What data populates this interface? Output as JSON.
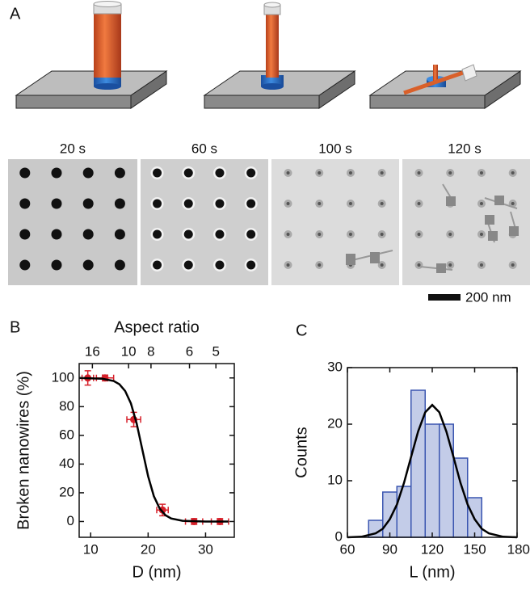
{
  "panel_labels": [
    "A",
    "B",
    "C"
  ],
  "time_labels": [
    "20 s",
    "60 s",
    "100 s",
    "120 s"
  ],
  "scale_bar": "200 nm",
  "chart_data": [
    {
      "type": "scatter",
      "x2label": "Aspect ratio",
      "xlabel": "D (nm)",
      "ylabel": "Broken nanowires (%)",
      "xlim": [
        8,
        35
      ],
      "ylim": [
        -11,
        110
      ],
      "xticks": [
        10,
        20,
        30
      ],
      "yticks": [
        0,
        20,
        40,
        60,
        80,
        100
      ],
      "x2ticks": [
        {
          "value": 10.3,
          "label": "16"
        },
        {
          "value": 16.6,
          "label": "10"
        },
        {
          "value": 20.5,
          "label": "8"
        },
        {
          "value": 27.2,
          "label": "6"
        },
        {
          "value": 31.8,
          "label": "5"
        }
      ],
      "series": [
        {
          "color": "#d6202a",
          "x": [
            9.5,
            12.5,
            17.5,
            22.5,
            28,
            32.5
          ],
          "values": [
            100,
            100,
            71,
            8,
            0,
            0
          ],
          "x_err": [
            1,
            1.5,
            1.2,
            1,
            1.5,
            1.5
          ],
          "y_err": [
            5,
            2,
            5,
            4,
            2,
            2
          ]
        },
        {
          "color": "#000000",
          "x": [
            8,
            12,
            14,
            15,
            16,
            17,
            18,
            19,
            20,
            21,
            22,
            23,
            24,
            26,
            30,
            34
          ],
          "values": [
            100,
            99.5,
            97.9,
            95.6,
            90.9,
            82.3,
            68.4,
            50,
            31.6,
            17.7,
            9.1,
            4.4,
            2.1,
            0.5,
            0,
            0
          ]
        }
      ]
    },
    {
      "type": "histogram",
      "xlabel": "L (nm)",
      "ylabel": "Counts",
      "xlim": [
        60,
        180
      ],
      "ylim": [
        0,
        30
      ],
      "xticks": [
        60,
        90,
        120,
        150,
        180
      ],
      "yticks": [
        0,
        10,
        20,
        30
      ],
      "bins": [
        75,
        85,
        95,
        105,
        115,
        125,
        135,
        145,
        155
      ],
      "counts": [
        3,
        8,
        9,
        26,
        20,
        20,
        14,
        7
      ],
      "color": "#c3cce8",
      "edge_color": "#3a55b0",
      "series": [
        {
          "color": "#000000",
          "x": [
            60,
            70,
            80,
            85,
            90,
            95,
            100,
            105,
            110,
            115,
            120,
            125,
            130,
            135,
            140,
            145,
            150,
            155,
            160,
            170,
            180
          ],
          "values": [
            0,
            0.1,
            0.7,
            1.5,
            3.2,
            5.8,
            9.6,
            14.2,
            18.7,
            22.1,
            23.4,
            22.1,
            18.7,
            14.2,
            9.6,
            5.8,
            3.2,
            1.5,
            0.7,
            0.1,
            0
          ]
        }
      ]
    }
  ]
}
